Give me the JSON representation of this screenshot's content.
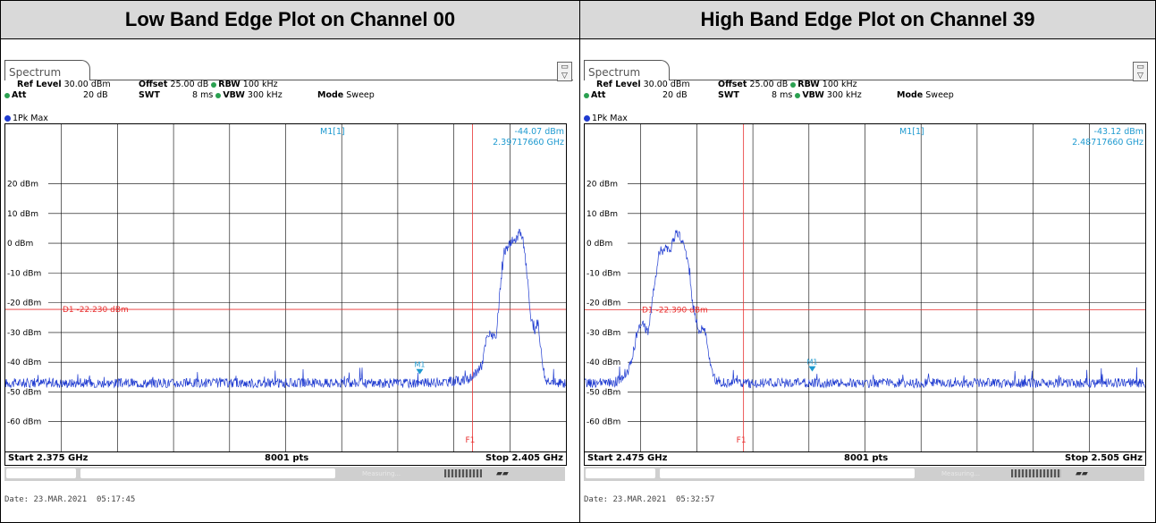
{
  "headers": {
    "left": "Low Band Edge Plot on Channel 00",
    "right": "High Band Edge Plot on Channel 39"
  },
  "panels": [
    {
      "tab_label": "Spectrum",
      "ref_level_label": "Ref Level",
      "ref_level_value": "30.00 dBm",
      "offset_label": "Offset",
      "offset_value": "25.00 dB",
      "rbw_label": "RBW",
      "rbw_value": "100 kHz",
      "att_label": "Att",
      "att_value": "20 dB",
      "swt_label": "SWT",
      "swt_value": "8 ms",
      "vbw_label": "VBW",
      "vbw_value": "300 kHz",
      "mode_label": "Mode",
      "mode_value": "Sweep",
      "trace_label": "1Pk Max",
      "marker_name": "M1[1]",
      "marker_level": "-44.07 dBm",
      "marker_freq": "2.39717660 GHz",
      "display_line_label": "D1  -22.230 dBm",
      "freq_line_label": "F1",
      "marker_tag": "M1",
      "start": "Start 2.375 GHz",
      "points": "8001 pts",
      "stop": "Stop 2.405 GHz",
      "status_text": "Measuring...",
      "date": "Date: 23.MAR.2021  05:17:45"
    },
    {
      "tab_label": "Spectrum",
      "ref_level_label": "Ref Level",
      "ref_level_value": "30.00 dBm",
      "offset_label": "Offset",
      "offset_value": "25.00 dB",
      "rbw_label": "RBW",
      "rbw_value": "100 kHz",
      "att_label": "Att",
      "att_value": "20 dB",
      "swt_label": "SWT",
      "swt_value": "8 ms",
      "vbw_label": "VBW",
      "vbw_value": "300 kHz",
      "mode_label": "Mode",
      "mode_value": "Sweep",
      "trace_label": "1Pk Max",
      "marker_name": "M1[1]",
      "marker_level": "-43.12 dBm",
      "marker_freq": "2.48717660 GHz",
      "display_line_label": "D1  -22.390 dBm",
      "freq_line_label": "F1",
      "marker_tag": "M1",
      "start": "Start 2.475 GHz",
      "points": "8001 pts",
      "stop": "Stop 2.505 GHz",
      "status_text": "Measuring...",
      "date": "Date: 23.MAR.2021  05:32:57"
    }
  ],
  "chart_data": [
    {
      "type": "line",
      "title": "Low Band Edge Plot on Channel 00",
      "xlabel": "",
      "ylabel": "",
      "xlim": [
        2.375,
        2.405
      ],
      "ylim": [
        -70,
        30
      ],
      "yticks": [
        20,
        10,
        0,
        -10,
        -20,
        -30,
        -40,
        -50,
        -60
      ],
      "ytick_labels": [
        "20 dBm",
        "10 dBm",
        "0 dBm",
        "-10 dBm",
        "-20 dBm",
        "-30 dBm",
        "-40 dBm",
        "-50 dBm",
        "-60 dBm"
      ],
      "grid": true,
      "display_line_dbm": -22.23,
      "f1_ghz": 2.4,
      "marker": {
        "x": 2.3971766,
        "y": -44.07
      },
      "series": [
        {
          "color": "#1e3ad0",
          "noise_floor": -47,
          "x": [
            2.375,
            2.3975,
            2.39975,
            2.4,
            2.4005,
            2.40075,
            2.401,
            2.40125,
            2.4015,
            2.4017,
            2.4019,
            2.4021,
            2.4023,
            2.4025,
            2.4027,
            2.4029,
            2.4031,
            2.4033,
            2.4035,
            2.4037,
            2.4039,
            2.4042,
            2.4045,
            2.405
          ],
          "y": [
            -47,
            -47,
            -46,
            -45,
            -41,
            -32,
            -30,
            -33,
            -14,
            -3,
            -1,
            1,
            0,
            4,
            1,
            -9,
            -24,
            -30,
            -26,
            -38,
            -46,
            -46,
            -47,
            -47
          ]
        }
      ]
    },
    {
      "type": "line",
      "title": "High Band Edge Plot on Channel 39",
      "xlabel": "",
      "ylabel": "",
      "xlim": [
        2.475,
        2.505
      ],
      "ylim": [
        -70,
        30
      ],
      "yticks": [
        20,
        10,
        0,
        -10,
        -20,
        -30,
        -40,
        -50,
        -60
      ],
      "ytick_labels": [
        "20 dBm",
        "10 dBm",
        "0 dBm",
        "-10 dBm",
        "-20 dBm",
        "-30 dBm",
        "-40 dBm",
        "-50 dBm",
        "-60 dBm"
      ],
      "grid": true,
      "display_line_dbm": -22.39,
      "f1_ghz": 2.4835,
      "marker": {
        "x": 2.4871766,
        "y": -43.12
      },
      "series": [
        {
          "color": "#1e3ad0",
          "noise_floor": -47,
          "x": [
            2.475,
            2.4765,
            2.4772,
            2.4775,
            2.4778,
            2.4781,
            2.4784,
            2.4787,
            2.479,
            2.4793,
            2.4796,
            2.4799,
            2.4802,
            2.4805,
            2.4808,
            2.4811,
            2.4814,
            2.4817,
            2.482,
            2.4825,
            2.483,
            2.505
          ],
          "y": [
            -47,
            -47,
            -45,
            -40,
            -30,
            -27,
            -30,
            -15,
            -4,
            -1,
            -2,
            4,
            1,
            -5,
            -21,
            -30,
            -28,
            -40,
            -46,
            -47,
            -47,
            -47
          ]
        }
      ]
    }
  ]
}
